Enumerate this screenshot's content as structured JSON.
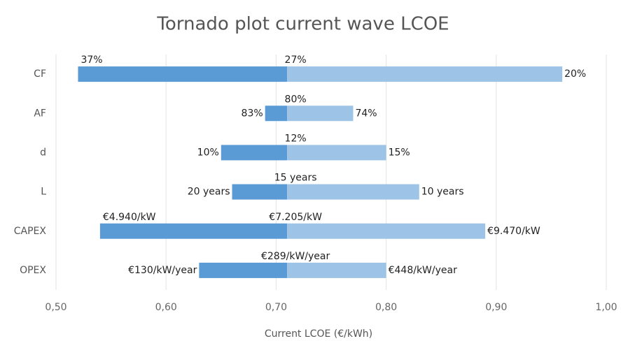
{
  "chart_data": {
    "type": "tornado",
    "title": "Tornado plot current wave LCOE",
    "x_label": "Current LCOE (€/kWh)",
    "categories": [
      "CF",
      "AF",
      "d",
      "L",
      "CAPEX",
      "OPEX"
    ],
    "base": 0.71,
    "low": [
      0.52,
      0.69,
      0.65,
      0.66,
      0.54,
      0.63
    ],
    "high": [
      0.96,
      0.77,
      0.8,
      0.83,
      0.89,
      0.8
    ],
    "low_labels": [
      "37%",
      "83%",
      "10%",
      "20 years",
      "€4.940/kW",
      "€130/kW/year"
    ],
    "base_labels": [
      "27%",
      "80%",
      "12%",
      "15 years",
      "€7.205/kW",
      "€289/kW/year"
    ],
    "high_labels": [
      "20%",
      "74%",
      "15%",
      "10 years",
      "€9.470/kW",
      "€448/kW/year"
    ],
    "low_color": "#5b9bd5",
    "high_color": "#9dc3e6",
    "xlim": [
      0.5,
      1.0
    ],
    "xticks": [
      {
        "value": 0.5,
        "label": "0,50"
      },
      {
        "value": 0.6,
        "label": "0,60"
      },
      {
        "value": 0.7,
        "label": "0,70"
      },
      {
        "value": 0.8,
        "label": "0,80"
      },
      {
        "value": 0.9,
        "label": "0,90"
      },
      {
        "value": 1.0,
        "label": "1,00"
      }
    ],
    "grid": true
  }
}
